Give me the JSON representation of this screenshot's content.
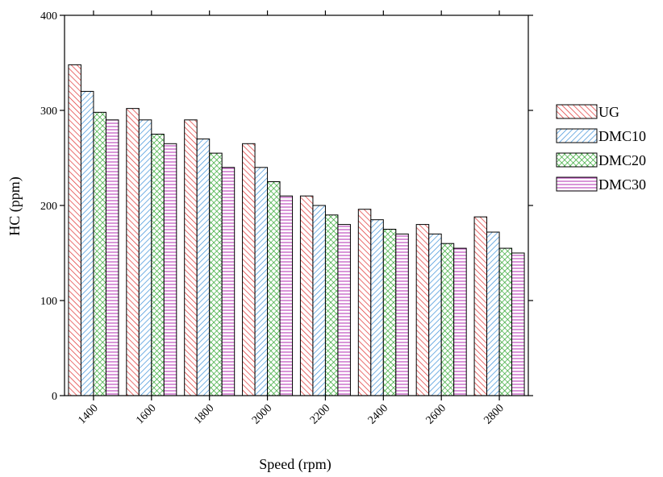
{
  "chart_data": {
    "type": "bar",
    "title": "",
    "xlabel": "Speed (rpm)",
    "ylabel": "HC (ppm)",
    "ylim": [
      0,
      400
    ],
    "yticks": [
      0,
      100,
      200,
      300,
      400
    ],
    "grid": false,
    "legend_position": "right",
    "categories": [
      "1400",
      "1600",
      "1800",
      "2000",
      "2200",
      "2400",
      "2600",
      "2800"
    ],
    "series": [
      {
        "name": "UG",
        "color": "#e03030",
        "pattern": "diagonal-forward",
        "values": [
          348,
          302,
          290,
          265,
          210,
          196,
          180,
          188
        ]
      },
      {
        "name": "DMC10",
        "color": "#3a8fd8",
        "pattern": "diagonal-backward",
        "values": [
          320,
          290,
          270,
          240,
          200,
          185,
          170,
          172
        ]
      },
      {
        "name": "DMC20",
        "color": "#22a022",
        "pattern": "crosshatch",
        "values": [
          298,
          275,
          255,
          225,
          190,
          175,
          160,
          155
        ]
      },
      {
        "name": "DMC30",
        "color": "#c050c0",
        "pattern": "horizontal",
        "values": [
          290,
          265,
          240,
          210,
          180,
          170,
          155,
          150
        ]
      }
    ]
  }
}
